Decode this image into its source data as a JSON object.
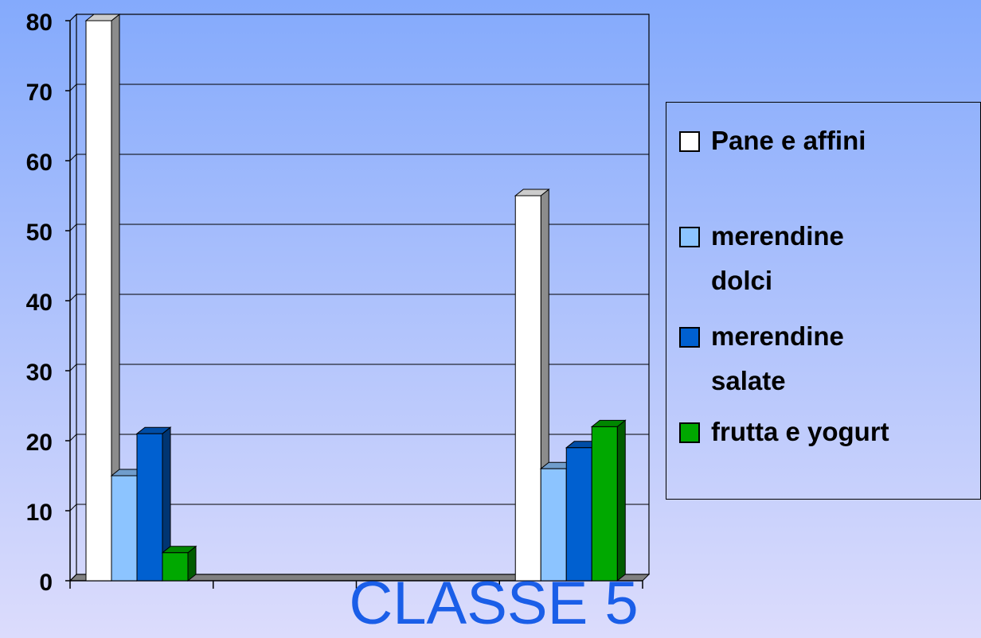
{
  "chart_data": {
    "type": "bar3d",
    "title": "CLASSE 5",
    "categories": [
      null,
      null,
      null,
      null
    ],
    "series": [
      {
        "name": "Pane e affini",
        "color": "#ffffff",
        "values": [
          80,
          null,
          null,
          55
        ]
      },
      {
        "name": "merendine dolci",
        "color": "#8cc4ff",
        "values": [
          15,
          null,
          null,
          16
        ]
      },
      {
        "name": "merendine salate",
        "color": "#0060d0",
        "values": [
          21,
          null,
          null,
          19
        ]
      },
      {
        "name": "frutta e yogurt",
        "color": "#00a800",
        "values": [
          4,
          null,
          null,
          22
        ]
      }
    ],
    "ylim": [
      0,
      80
    ],
    "yticks": [
      0,
      10,
      20,
      30,
      40,
      50,
      60,
      70,
      80
    ],
    "grid": true,
    "legend": "right"
  }
}
